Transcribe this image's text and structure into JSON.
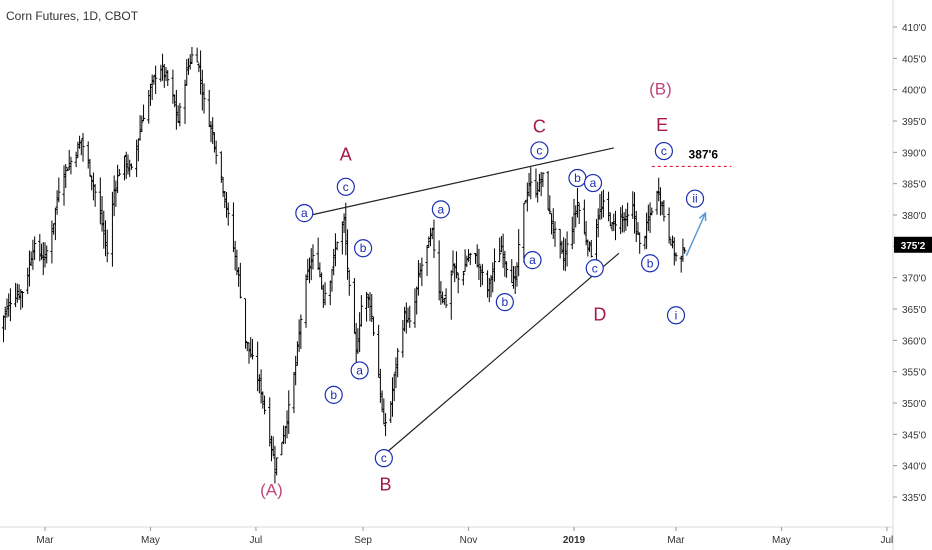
{
  "header": {
    "title": "Corn Futures, 1D, CBOT"
  },
  "colors": {
    "bars": "#000000",
    "wave_primary": "#a3184d",
    "wave_parent": "#c2467a",
    "wave_minor": "#1a2fb3",
    "arrow": "#5b9bd5",
    "level_line": "#d0021b",
    "price_box": "#000000",
    "axis_line": "#cccccc"
  },
  "chart_data": {
    "type": "ohlc",
    "x_ticks": [
      {
        "label": "Mar",
        "date": "2018-03-01"
      },
      {
        "label": "May",
        "date": "2018-05-01"
      },
      {
        "label": "Jul",
        "date": "2018-07-01"
      },
      {
        "label": "Sep",
        "date": "2018-09-01"
      },
      {
        "label": "Nov",
        "date": "2018-11-01"
      },
      {
        "label": "2019",
        "date": "2019-01-01",
        "bold": true
      },
      {
        "label": "Mar",
        "date": "2019-03-01"
      },
      {
        "label": "May",
        "date": "2019-05-01"
      },
      {
        "label": "Jul",
        "date": "2019-07-01"
      }
    ],
    "y_ticks": [
      "335'0",
      "340'0",
      "345'0",
      "350'0",
      "355'0",
      "360'0",
      "365'0",
      "370'0",
      "375'0",
      "380'0",
      "385'0",
      "390'0",
      "395'0",
      "400'0",
      "405'0",
      "410'0"
    ],
    "ylim": [
      332,
      413
    ],
    "last_price": {
      "label": "375'2",
      "value": 375.25
    },
    "key_level": {
      "label": "387'6",
      "value": 387.75,
      "from": "2019-02-15",
      "to": "2019-04-02"
    },
    "path": [
      [
        "2018-02-02",
        362
      ],
      [
        "2018-02-10",
        367
      ],
      [
        "2018-02-17",
        368
      ],
      [
        "2018-02-22",
        375
      ],
      [
        "2018-03-01",
        373
      ],
      [
        "2018-03-06",
        379
      ],
      [
        "2018-03-10",
        386
      ],
      [
        "2018-03-17",
        389
      ],
      [
        "2018-03-22",
        392
      ],
      [
        "2018-03-28",
        386
      ],
      [
        "2018-04-02",
        380
      ],
      [
        "2018-04-06",
        374
      ],
      [
        "2018-04-10",
        384
      ],
      [
        "2018-04-15",
        389
      ],
      [
        "2018-04-20",
        387
      ],
      [
        "2018-04-26",
        395
      ],
      [
        "2018-05-01",
        400
      ],
      [
        "2018-05-06",
        404
      ],
      [
        "2018-05-12",
        401
      ],
      [
        "2018-05-17",
        395
      ],
      [
        "2018-05-22",
        403
      ],
      [
        "2018-05-27",
        407
      ],
      [
        "2018-06-01",
        398
      ],
      [
        "2018-06-06",
        393
      ],
      [
        "2018-06-11",
        386
      ],
      [
        "2018-06-16",
        378
      ],
      [
        "2018-06-21",
        370
      ],
      [
        "2018-06-25",
        360
      ],
      [
        "2018-06-30",
        356
      ],
      [
        "2018-07-04",
        352
      ],
      [
        "2018-07-08",
        346
      ],
      [
        "2018-07-12",
        340
      ],
      [
        "2018-07-16",
        344
      ],
      [
        "2018-07-20",
        349
      ],
      [
        "2018-07-24",
        356
      ],
      [
        "2018-07-28",
        366
      ],
      [
        "2018-08-01",
        372
      ],
      [
        "2018-08-05",
        374
      ],
      [
        "2018-08-09",
        367
      ],
      [
        "2018-08-13",
        370
      ],
      [
        "2018-08-17",
        376
      ],
      [
        "2018-08-21",
        379
      ],
      [
        "2018-08-24",
        368
      ],
      [
        "2018-08-28",
        358
      ],
      [
        "2018-09-01",
        368
      ],
      [
        "2018-09-05",
        366
      ],
      [
        "2018-09-09",
        357
      ],
      [
        "2018-09-13",
        346
      ],
      [
        "2018-09-17",
        350
      ],
      [
        "2018-09-21",
        358
      ],
      [
        "2018-09-25",
        364
      ],
      [
        "2018-09-29",
        362
      ],
      [
        "2018-10-03",
        370
      ],
      [
        "2018-10-07",
        374
      ],
      [
        "2018-10-11",
        377
      ],
      [
        "2018-10-15",
        368
      ],
      [
        "2018-10-19",
        366
      ],
      [
        "2018-10-23",
        372
      ],
      [
        "2018-10-27",
        369
      ],
      [
        "2018-10-31",
        373
      ],
      [
        "2018-11-04",
        374
      ],
      [
        "2018-11-08",
        371
      ],
      [
        "2018-11-12",
        368
      ],
      [
        "2018-11-16",
        372
      ],
      [
        "2018-11-20",
        375
      ],
      [
        "2018-11-24",
        371
      ],
      [
        "2018-11-28",
        369
      ],
      [
        "2018-12-02",
        380
      ],
      [
        "2018-12-06",
        385
      ],
      [
        "2018-12-10",
        384
      ],
      [
        "2018-12-14",
        386
      ],
      [
        "2018-12-18",
        380
      ],
      [
        "2018-12-22",
        376
      ],
      [
        "2018-12-26",
        373
      ],
      [
        "2018-12-30",
        377
      ],
      [
        "2019-01-03",
        382
      ],
      [
        "2019-01-07",
        377
      ],
      [
        "2019-01-11",
        374
      ],
      [
        "2019-01-15",
        380
      ],
      [
        "2019-01-19",
        382
      ],
      [
        "2019-01-23",
        378
      ],
      [
        "2019-01-27",
        380
      ],
      [
        "2019-01-31",
        379
      ],
      [
        "2019-02-04",
        381
      ],
      [
        "2019-02-08",
        375
      ],
      [
        "2019-02-11",
        377
      ],
      [
        "2019-02-15",
        381
      ],
      [
        "2019-02-19",
        384
      ],
      [
        "2019-02-22",
        380
      ],
      [
        "2019-02-25",
        377
      ],
      [
        "2019-02-28",
        374
      ],
      [
        "2019-03-03",
        372
      ],
      [
        "2019-03-06",
        375
      ]
    ]
  },
  "wave_labels": {
    "primary": [
      {
        "label": "(A)",
        "date": "2018-07-10",
        "y": 335.2,
        "kind": "parent"
      },
      {
        "label": "(B)",
        "date": "2019-02-20",
        "y": 399.2,
        "kind": "parent"
      },
      {
        "label": "A",
        "date": "2018-08-22",
        "y": 388.7
      },
      {
        "label": "B",
        "date": "2018-09-14",
        "y": 336.0
      },
      {
        "label": "C",
        "date": "2018-12-12",
        "y": 393.2
      },
      {
        "label": "D",
        "date": "2019-01-16",
        "y": 363.2
      },
      {
        "label": "E",
        "date": "2019-02-21",
        "y": 393.4
      }
    ],
    "minor": [
      {
        "label": "a",
        "date": "2018-07-29",
        "y": 380.3
      },
      {
        "label": "c",
        "date": "2018-08-22",
        "y": 384.5
      },
      {
        "label": "b",
        "date": "2018-08-15",
        "y": 351.3
      },
      {
        "label": "a",
        "date": "2018-08-30",
        "y": 355.2
      },
      {
        "label": "b",
        "date": "2018-09-01",
        "y": 374.7
      },
      {
        "label": "c",
        "date": "2018-09-13",
        "y": 341.2
      },
      {
        "label": "a",
        "date": "2018-10-16",
        "y": 380.9
      },
      {
        "label": "b",
        "date": "2018-11-22",
        "y": 366.1
      },
      {
        "label": "c",
        "date": "2018-12-12",
        "y": 390.3
      },
      {
        "label": "a",
        "date": "2018-12-08",
        "y": 372.8
      },
      {
        "label": "b",
        "date": "2019-01-03",
        "y": 385.9
      },
      {
        "label": "a",
        "date": "2019-01-12",
        "y": 385.1
      },
      {
        "label": "c",
        "date": "2019-01-13",
        "y": 371.5
      },
      {
        "label": "b",
        "date": "2019-02-14",
        "y": 372.3
      },
      {
        "label": "c",
        "date": "2019-02-22",
        "y": 390.2
      },
      {
        "label": "i",
        "date": "2019-03-01",
        "y": 364.0
      },
      {
        "label": "ii",
        "date": "2019-03-12",
        "y": 382.6
      }
    ]
  },
  "trendlines": [
    {
      "from": [
        "2018-07-28",
        379.7
      ],
      "to": [
        "2019-01-24",
        390.7
      ]
    },
    {
      "from": [
        "2018-09-15",
        342.2
      ],
      "to": [
        "2019-01-27",
        373.9
      ]
    }
  ],
  "arrow": {
    "from": [
      "2019-03-07",
      373.5
    ],
    "to": [
      "2019-03-18",
      380.3
    ]
  }
}
